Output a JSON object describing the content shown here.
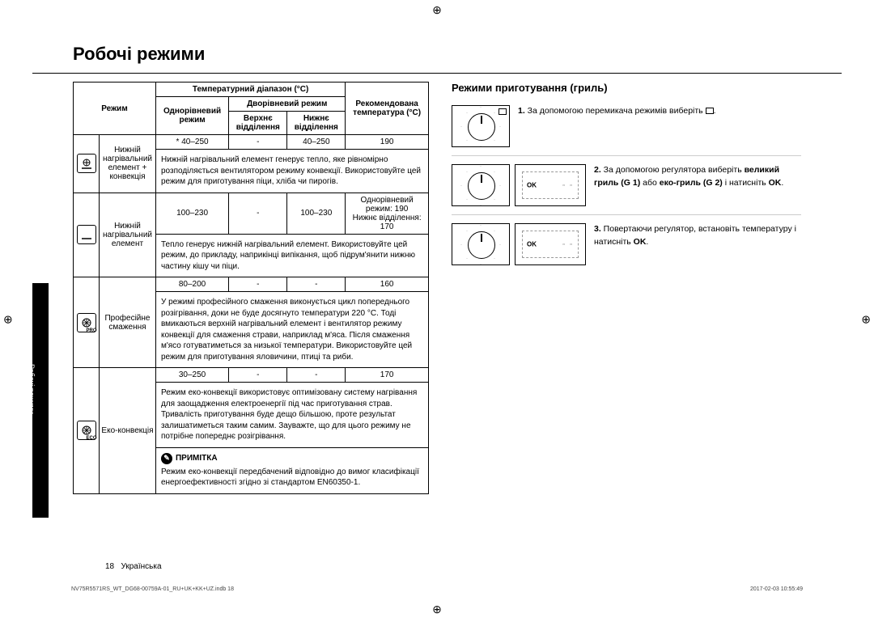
{
  "pageTitle": "Робочі режими",
  "sideTab": "Робочі режими",
  "table": {
    "headers": {
      "mode": "Режим",
      "tempRange": "Температурний діапазон (°C)",
      "single": "Однорівневий режим",
      "dual": "Дворівневий режим",
      "upper": "Верхнє відділення",
      "lower": "Нижнє відділення",
      "recommended": "Рекомендована температура (°C)"
    },
    "rows": [
      {
        "icon": "fan-bottom",
        "iconSub": "",
        "label": "Нижній нагрівальний елемент + конвекція",
        "single": "* 40–250",
        "upper": "-",
        "lower": "40–250",
        "rec": "190",
        "desc": "Нижній нагрівальний елемент генерує тепло, яке рівномірно розподіляється вентилятором режиму конвекції. Використовуйте цей режим для приготування піци, хліба чи пирогів."
      },
      {
        "icon": "bottom",
        "iconSub": "",
        "label": "Нижній нагрівальний елемент",
        "single": "100–230",
        "upper": "-",
        "lower": "100–230",
        "rec": "Однорівневий режим: 190\nНижнє відділення: 170",
        "desc": "Тепло генерує нижній нагрівальний елемент. Використовуйте цей режим, до прикладу, наприкінці випікання, щоб підрум'янити нижню частину кішу чи піци."
      },
      {
        "icon": "fan",
        "iconSub": "PRO",
        "label": "Професійне смаження",
        "single": "80–200",
        "upper": "-",
        "lower": "-",
        "rec": "160",
        "desc": "У режимі професійного смаження виконується цикл попереднього розігрівання, доки не буде досягнуто температури 220 °C. Тоді вмикаються верхній нагрівальний елемент і вентилятор режиму конвекції для смаження страви, наприклад м'яса. Після смаження м'ясо готуватиметься за низької температури. Використовуйте цей режим для приготування яловичини, птиці та риби."
      },
      {
        "icon": "fan",
        "iconSub": "ECO",
        "label": "Еко-конвекція",
        "single": "30–250",
        "upper": "-",
        "lower": "-",
        "rec": "170",
        "desc": "Режим еко-конвекції використовує оптимізовану систему нагрівання для заощадження електроенергії під час приготування страв. Тривалість приготування буде дещо більшою, проте результат залишатиметься таким самим. Зауважте, що для цього режиму не потрібне попереднє розігрівання.",
        "noteLabel": "ПРИМІТКА",
        "note": "Режим еко-конвекції передбачений відповідно до вимог класифікації енергоефективності згідно зі стандартом EN60350-1."
      }
    ]
  },
  "right": {
    "heading": "Режими приготування (гриль)",
    "steps": [
      {
        "num": "1.",
        "text": "За допомогою перемикача режимів виберіть ",
        "trail": ".",
        "hasIcon": true,
        "panels": [
          "dial-ind"
        ]
      },
      {
        "num": "2.",
        "text": "За допомогою регулятора виберіть ",
        "bold": "великий гриль (G 1)",
        "mid": " або ",
        "bold2": "еко-гриль (G 2)",
        "after": " і натисніть ",
        "bold3": "OK",
        "trail": ".",
        "panels": [
          "dial",
          "disp"
        ]
      },
      {
        "num": "3.",
        "text": "Повертаючи регулятор, встановіть температуру і натисніть ",
        "bold": "OK",
        "trail": ".",
        "panels": [
          "dial",
          "disp"
        ]
      }
    ]
  },
  "footer": {
    "pageNum": "18",
    "lang": "Українська",
    "file": "NV75R5571RS_WT_DG68-00759A-01_RU+UK+KK+UZ.indb   18",
    "date": "2017-02-03   10:55:49"
  }
}
